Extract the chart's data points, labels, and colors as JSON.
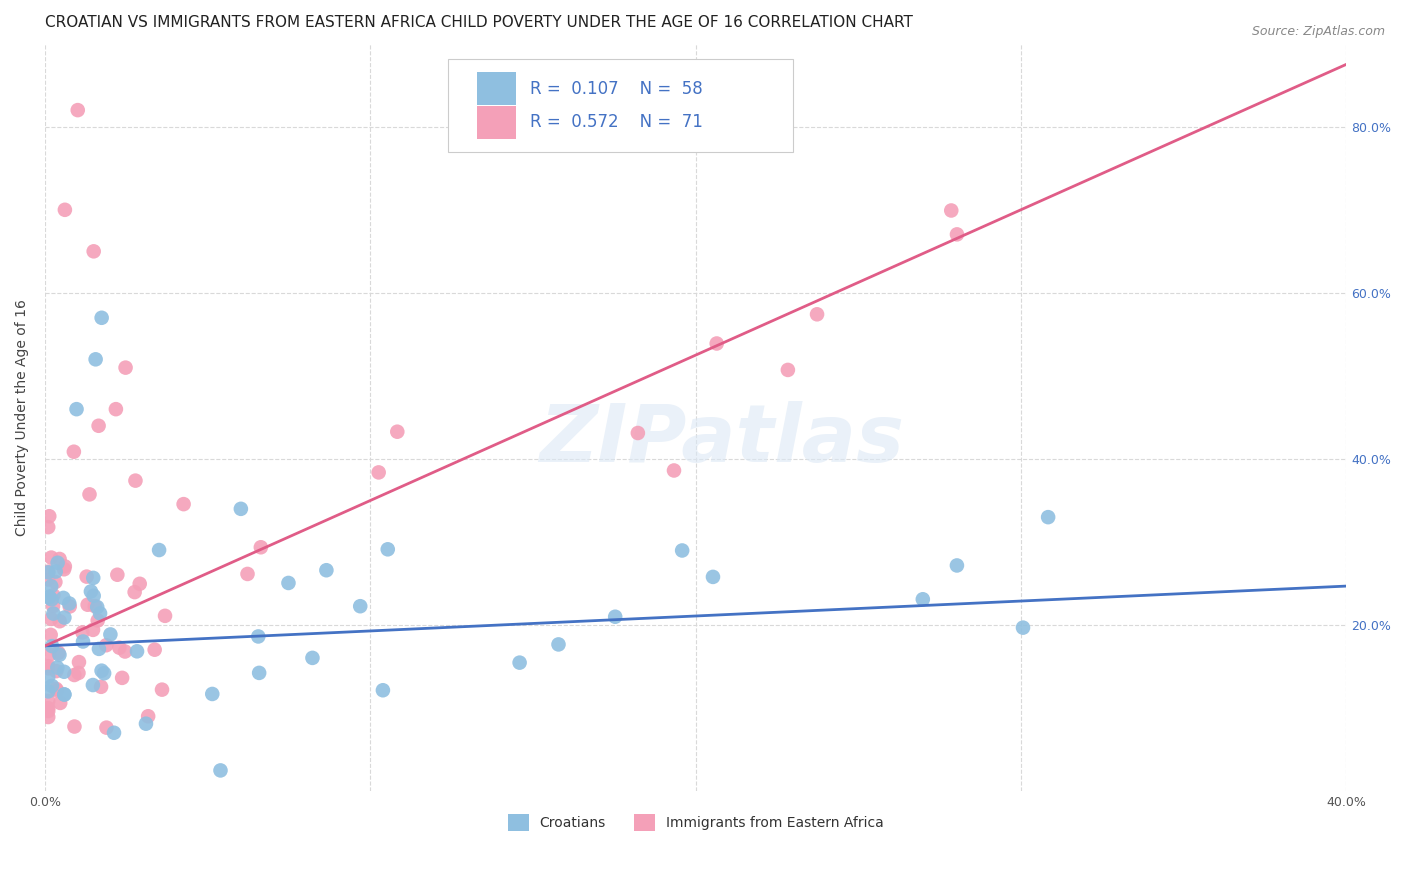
{
  "title": "CROATIAN VS IMMIGRANTS FROM EASTERN AFRICA CHILD POVERTY UNDER THE AGE OF 16 CORRELATION CHART",
  "source": "Source: ZipAtlas.com",
  "ylabel": "Child Poverty Under the Age of 16",
  "xlim": [
    0.0,
    0.4
  ],
  "ylim": [
    0.0,
    0.9
  ],
  "yticks_right": [
    0.2,
    0.4,
    0.6,
    0.8
  ],
  "yticklabels_right": [
    "20.0%",
    "40.0%",
    "60.0%",
    "80.0%"
  ],
  "xtick_positions": [
    0.0,
    0.1,
    0.2,
    0.3,
    0.4
  ],
  "xticklabels": [
    "0.0%",
    "",
    "",
    "",
    "40.0%"
  ],
  "blue_color": "#8FBFE0",
  "pink_color": "#F4A0B8",
  "blue_line_color": "#4472C4",
  "pink_line_color": "#E05C87",
  "right_tick_color": "#4472C4",
  "legend_text_color": "#4472C4",
  "R_blue": 0.107,
  "N_blue": 58,
  "R_pink": 0.572,
  "N_pink": 71,
  "watermark": "ZIPatlas",
  "background_color": "#ffffff",
  "grid_color": "#d9d9d9",
  "title_fontsize": 11,
  "axis_label_fontsize": 10,
  "tick_fontsize": 9,
  "blue_intercept": 0.175,
  "blue_slope": 0.18,
  "pink_intercept": 0.175,
  "pink_slope": 1.75
}
